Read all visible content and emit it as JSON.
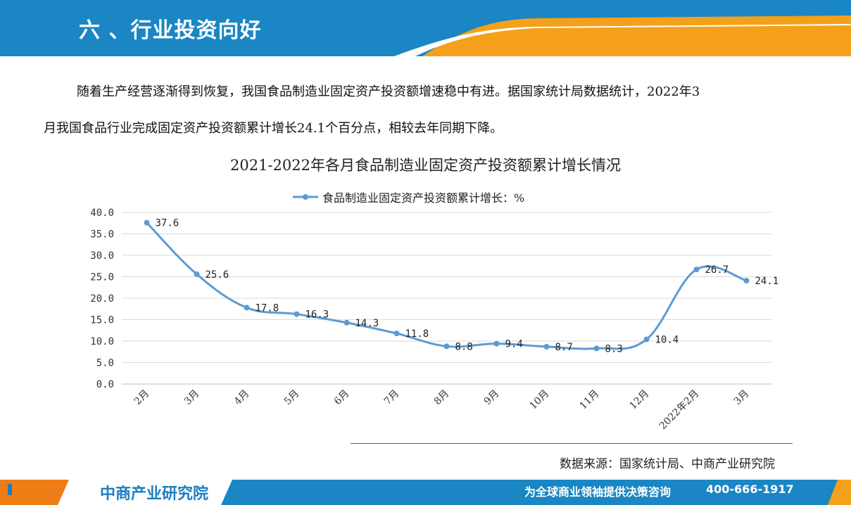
{
  "header": {
    "title": "六 、行业投资向好"
  },
  "paragraph": {
    "line1": "随着生产经营逐渐得到恢复，我国食品制造业固定资产投资额增速稳中有进。据国家统计局数据统计，2022年3",
    "line2": "月我国食品行业完成固定资产投资额累计增长24.1个百分点，相较去年同期下降。"
  },
  "colors": {
    "header_blue": "#1a86c3",
    "header_orange": "#f5a01a",
    "series": "#5b9bd5",
    "footer_orange": "#ef7d16",
    "footer_blue": "#1a86c3"
  },
  "chart_data": {
    "type": "line",
    "title": "2021-2022年各月食品制造业固定资产投资额累计增长情况",
    "categories": [
      "2月",
      "3月",
      "4月",
      "5月",
      "6月",
      "7月",
      "8月",
      "9月",
      "10月",
      "11月",
      "12月",
      "2022年2月",
      "3月"
    ],
    "series": [
      {
        "name": "食品制造业固定资产投资额累计增长：%",
        "values": [
          37.6,
          25.6,
          17.8,
          16.3,
          14.3,
          11.8,
          8.8,
          9.4,
          8.7,
          8.3,
          10.4,
          26.7,
          24.1
        ],
        "labels": [
          "37.6",
          "25.6",
          "17.8",
          "16.3",
          "14.3",
          "11.8",
          "8.8",
          "9.4",
          "8.7",
          "8.3",
          "10.4",
          "26.7",
          "24.1"
        ]
      }
    ],
    "ylim": [
      0,
      40
    ],
    "yticks": [
      "0.0",
      "5.0",
      "10.0",
      "15.0",
      "20.0",
      "25.0",
      "30.0",
      "35.0",
      "40.0"
    ],
    "grid": true,
    "legend_position": "top",
    "smooth": true
  },
  "source": "数据来源：国家统计局、中商产业研究院",
  "footer": {
    "logo": "中商产业研究院",
    "slogan": "为全球商业领袖提供决策咨询",
    "phone": "400-666-1917"
  }
}
